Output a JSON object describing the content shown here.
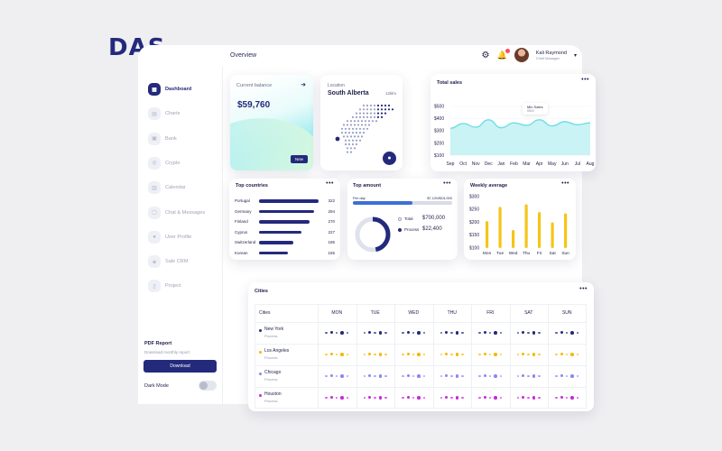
{
  "brand": {
    "logo": "DAS"
  },
  "topbar": {
    "title": "Overview",
    "user_name": "Kali Raymond",
    "user_role": "Chief Manager"
  },
  "sidebar": {
    "items": [
      {
        "label": "Dashboard",
        "icon": "grid-icon",
        "active": true
      },
      {
        "label": "Charts",
        "icon": "chart-icon"
      },
      {
        "label": "Bank",
        "icon": "bank-icon"
      },
      {
        "label": "Crypto",
        "icon": "crypto-icon"
      },
      {
        "label": "Calendar",
        "icon": "calendar-icon"
      },
      {
        "label": "Chat & Messages",
        "icon": "chat-icon"
      },
      {
        "label": "User Profile",
        "icon": "user-icon"
      },
      {
        "label": "Sale CRM",
        "icon": "crm-icon"
      },
      {
        "label": "Project",
        "icon": "project-icon"
      }
    ],
    "pdf_title": "PDF Report",
    "pdf_sub": "Download monthly report",
    "download": "Download",
    "dark_mode": "Dark Mode"
  },
  "balance": {
    "label": "Current balance",
    "amount": "$59,760",
    "new_label": "New"
  },
  "location": {
    "label": "Location",
    "region": "South Alberta",
    "distance": "12klm"
  },
  "total_sales": {
    "title": "Total sales",
    "tooltip_label": "Min Sales",
    "tooltip_value": "$$50"
  },
  "top_countries": {
    "title": "Top countries",
    "rows": [
      {
        "name": "Portugal",
        "value": "322"
      },
      {
        "name": "Germany",
        "value": "294"
      },
      {
        "name": "Finland",
        "value": "270"
      },
      {
        "name": "Cyprus",
        "value": "227"
      },
      {
        "name": "Switzerland",
        "value": "186"
      },
      {
        "name": "Korean",
        "value": "155"
      }
    ]
  },
  "top_amount": {
    "title": "Top amount",
    "per_day": "Per day",
    "range": "$7,120/$15,000",
    "total_label": "Total",
    "total_value": "$700,000",
    "process_label": "Process",
    "process_value": "$22,400"
  },
  "weekly": {
    "title": "Weekly average"
  },
  "cities": {
    "title": "Cities",
    "col_cities": "Cities",
    "days": [
      "MON",
      "TUE",
      "WED",
      "THU",
      "FRI",
      "SAT",
      "SUN"
    ],
    "rows": [
      {
        "name": "New York",
        "sub": "Process",
        "color": "#232a7c"
      },
      {
        "name": "Los Angeles",
        "sub": "Process",
        "color": "#f5b800"
      },
      {
        "name": "Chicago",
        "sub": "Process",
        "color": "#8a86ee"
      },
      {
        "name": "Houston",
        "sub": "Process",
        "color": "#c629d9"
      }
    ]
  },
  "colors": {
    "accent": "#232a7c",
    "yellow": "#f5c518",
    "teal": "#7fe3e8",
    "purple": "#c629d9"
  },
  "chart_data": [
    {
      "type": "area",
      "title": "Total sales",
      "x": [
        "Sep",
        "Oct",
        "Nov",
        "Dec",
        "Jan",
        "Feb",
        "Mar",
        "Apr",
        "May",
        "Jun",
        "Jul",
        "Aug"
      ],
      "y_ticks": [
        "$500",
        "$400",
        "$300",
        "$200",
        "$100"
      ],
      "ylim": [
        100,
        500
      ],
      "values": [
        320,
        360,
        330,
        390,
        325,
        365,
        345,
        390,
        340,
        375,
        350,
        365
      ]
    },
    {
      "type": "bar",
      "title": "Top countries",
      "categories": [
        "Portugal",
        "Germany",
        "Finland",
        "Cyprus",
        "Switzerland",
        "Korean"
      ],
      "values": [
        322,
        294,
        270,
        227,
        186,
        155
      ]
    },
    {
      "type": "bar",
      "title": "Weekly average",
      "categories": [
        "Mon",
        "Tue",
        "Wed",
        "Thu",
        "Fri",
        "Sat",
        "Sun"
      ],
      "y_ticks": [
        "$300",
        "$250",
        "$200",
        "$150",
        "$100"
      ],
      "ylim": [
        100,
        300
      ],
      "values": [
        205,
        260,
        170,
        270,
        240,
        200,
        235
      ]
    },
    {
      "type": "pie",
      "title": "Top amount",
      "values": [
        0.52,
        0.48
      ],
      "labels": [
        "Total",
        "Process"
      ]
    }
  ]
}
